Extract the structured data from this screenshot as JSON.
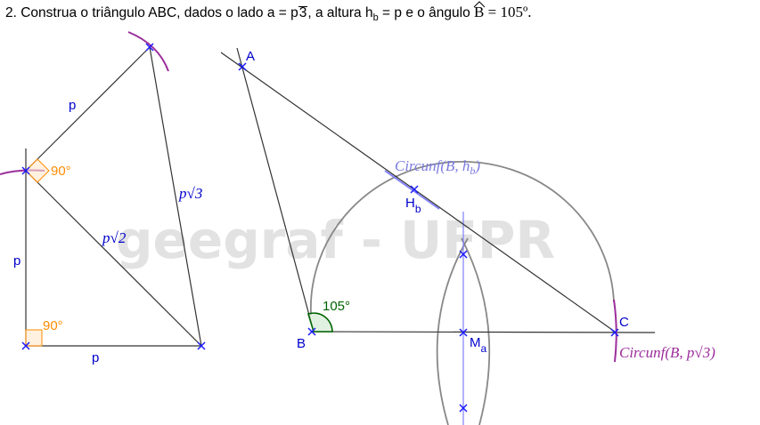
{
  "problem": {
    "part1": "2. Construa o triângulo ABC, dados o lado a = p",
    "sqrt3": "3",
    "part2": ", a altura h",
    "hb_sub": "b",
    "part3": " = p e o ângulo ",
    "angle_name": "B",
    "part4": " = 105º."
  },
  "watermark": "geegraf - UFPR",
  "left_figure": {
    "side_p_top": "p",
    "side_p_left": "p",
    "side_p_bottom": "p",
    "diag_p_sqrt2": "p√2",
    "diag_p_sqrt3": "p√3",
    "angle_top": "90°",
    "angle_bottom": "90°"
  },
  "right_figure": {
    "point_A": "A",
    "point_B": "B",
    "point_C": "C",
    "point_H": "H",
    "point_H_sub": "b",
    "point_M": "M",
    "point_M_sub": "a",
    "angle_B": "105°",
    "circ_hb": "Circunf(B, h",
    "circ_hb_sub": "b",
    "circ_hb_end": ")",
    "circ_a": "Circunf(B, p√3)"
  },
  "colors": {
    "line": "#333333",
    "point": "#1a1aff",
    "label_blue": "#0000cc",
    "orange": "#ff8c00",
    "purple": "#9b2d9b",
    "gray_arc": "#888888",
    "green": "#006400",
    "light_blue": "#8080ff",
    "circ_hb_label": "#7b7be0"
  }
}
